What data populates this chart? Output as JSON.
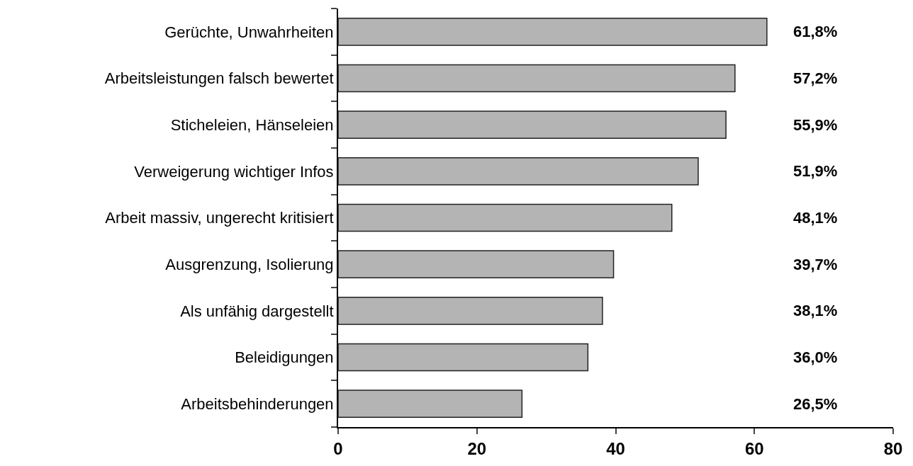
{
  "chart_data": {
    "type": "bar",
    "orientation": "horizontal",
    "categories": [
      "Gerüchte, Unwahrheiten",
      "Arbeitsleistungen falsch bewertet",
      "Sticheleien, Hänseleien",
      "Verweigerung wichtiger Infos",
      "Arbeit massiv, ungerecht kritisiert",
      "Ausgrenzung, Isolierung",
      "Als unfähig dargestellt",
      "Beleidigungen",
      "Arbeitsbehinderungen"
    ],
    "values": [
      61.8,
      57.2,
      55.9,
      51.9,
      48.1,
      39.7,
      38.1,
      36.0,
      26.5
    ],
    "value_labels": [
      "61,8%",
      "57,2%",
      "55,9%",
      "51,9%",
      "48,1%",
      "39,7%",
      "38,1%",
      "36,0%",
      "26,5%"
    ],
    "color": "#b4b4b4",
    "xlim": [
      0,
      80
    ],
    "xticks": [
      0,
      20,
      40,
      60,
      80
    ],
    "grid": false
  }
}
